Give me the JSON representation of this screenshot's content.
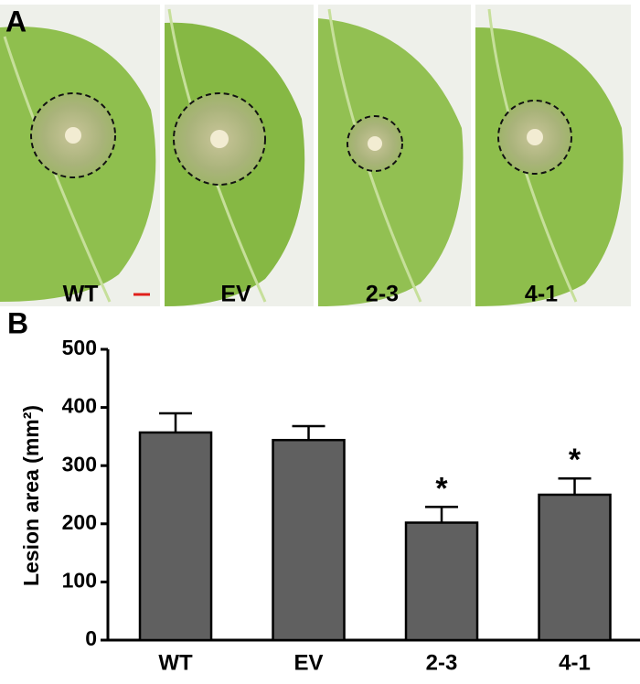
{
  "panel_a": {
    "letter": "A",
    "labels": [
      "WT",
      "EV",
      "2-3",
      "4-1"
    ]
  },
  "chart_data": {
    "type": "bar",
    "panel_letter": "B",
    "ylabel": "Lesion area (mm²)",
    "categories": [
      "WT",
      "EV",
      "2-3",
      "4-1"
    ],
    "values": [
      357,
      344,
      202,
      250
    ],
    "errors": [
      33,
      24,
      27,
      28
    ],
    "annotations": [
      null,
      null,
      "*",
      "*"
    ],
    "color": "#606060",
    "ylim": [
      0,
      500
    ],
    "yticks": [
      0,
      100,
      200,
      300,
      400,
      500
    ]
  }
}
